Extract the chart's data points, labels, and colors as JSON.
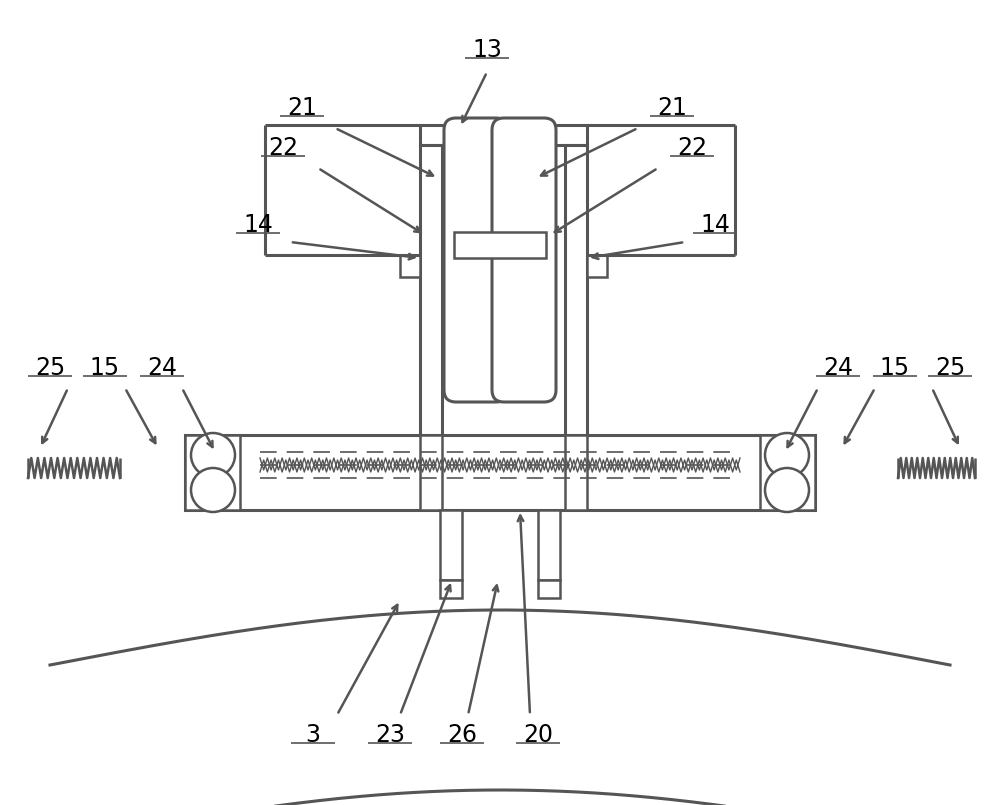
{
  "bg_color": "#ffffff",
  "lc": "#555555",
  "lw": 1.8,
  "lw2": 2.2
}
